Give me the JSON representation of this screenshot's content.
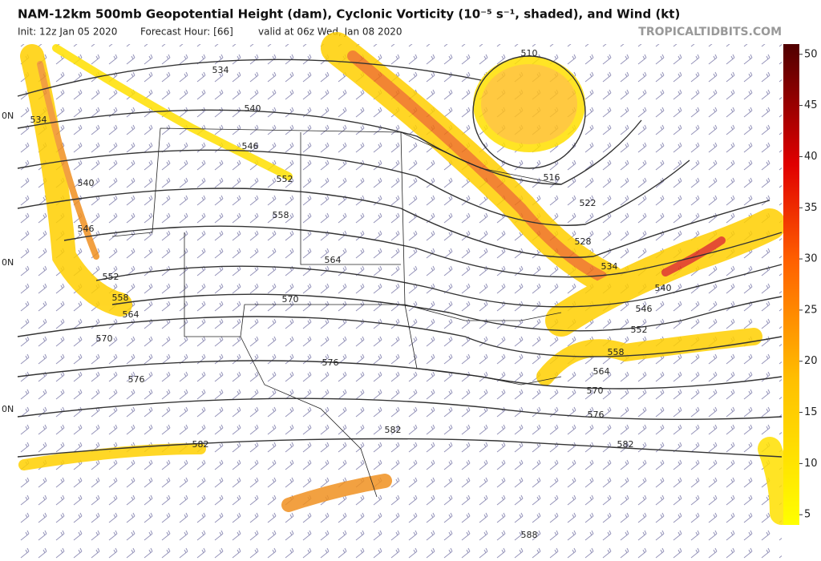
{
  "header": {
    "title": "NAM-12km 500mb Geopotential Height (dam), Cyclonic Vorticity (10⁻⁵ s⁻¹, shaded), and Wind (kt)",
    "init": "Init: 12z Jan 05 2020",
    "forecast_hour": "Forecast Hour: [66]",
    "valid": "valid at 06z Wed, Jan 08 2020",
    "site": "TROPICALTIDBITS.COM"
  },
  "colorbar": {
    "ticks": [
      5,
      10,
      15,
      20,
      25,
      30,
      35,
      40,
      45,
      50
    ],
    "range": [
      4,
      51
    ]
  },
  "lat_labels": [
    "0N",
    "0N",
    "0N"
  ],
  "contour_labels": [
    534,
    540,
    546,
    552,
    558,
    564,
    570,
    576,
    582,
    510,
    516,
    522,
    528,
    534,
    540,
    546,
    552,
    558,
    564,
    570,
    576,
    582,
    588,
    534,
    540,
    546,
    552,
    558,
    564,
    570,
    576,
    582
  ]
}
